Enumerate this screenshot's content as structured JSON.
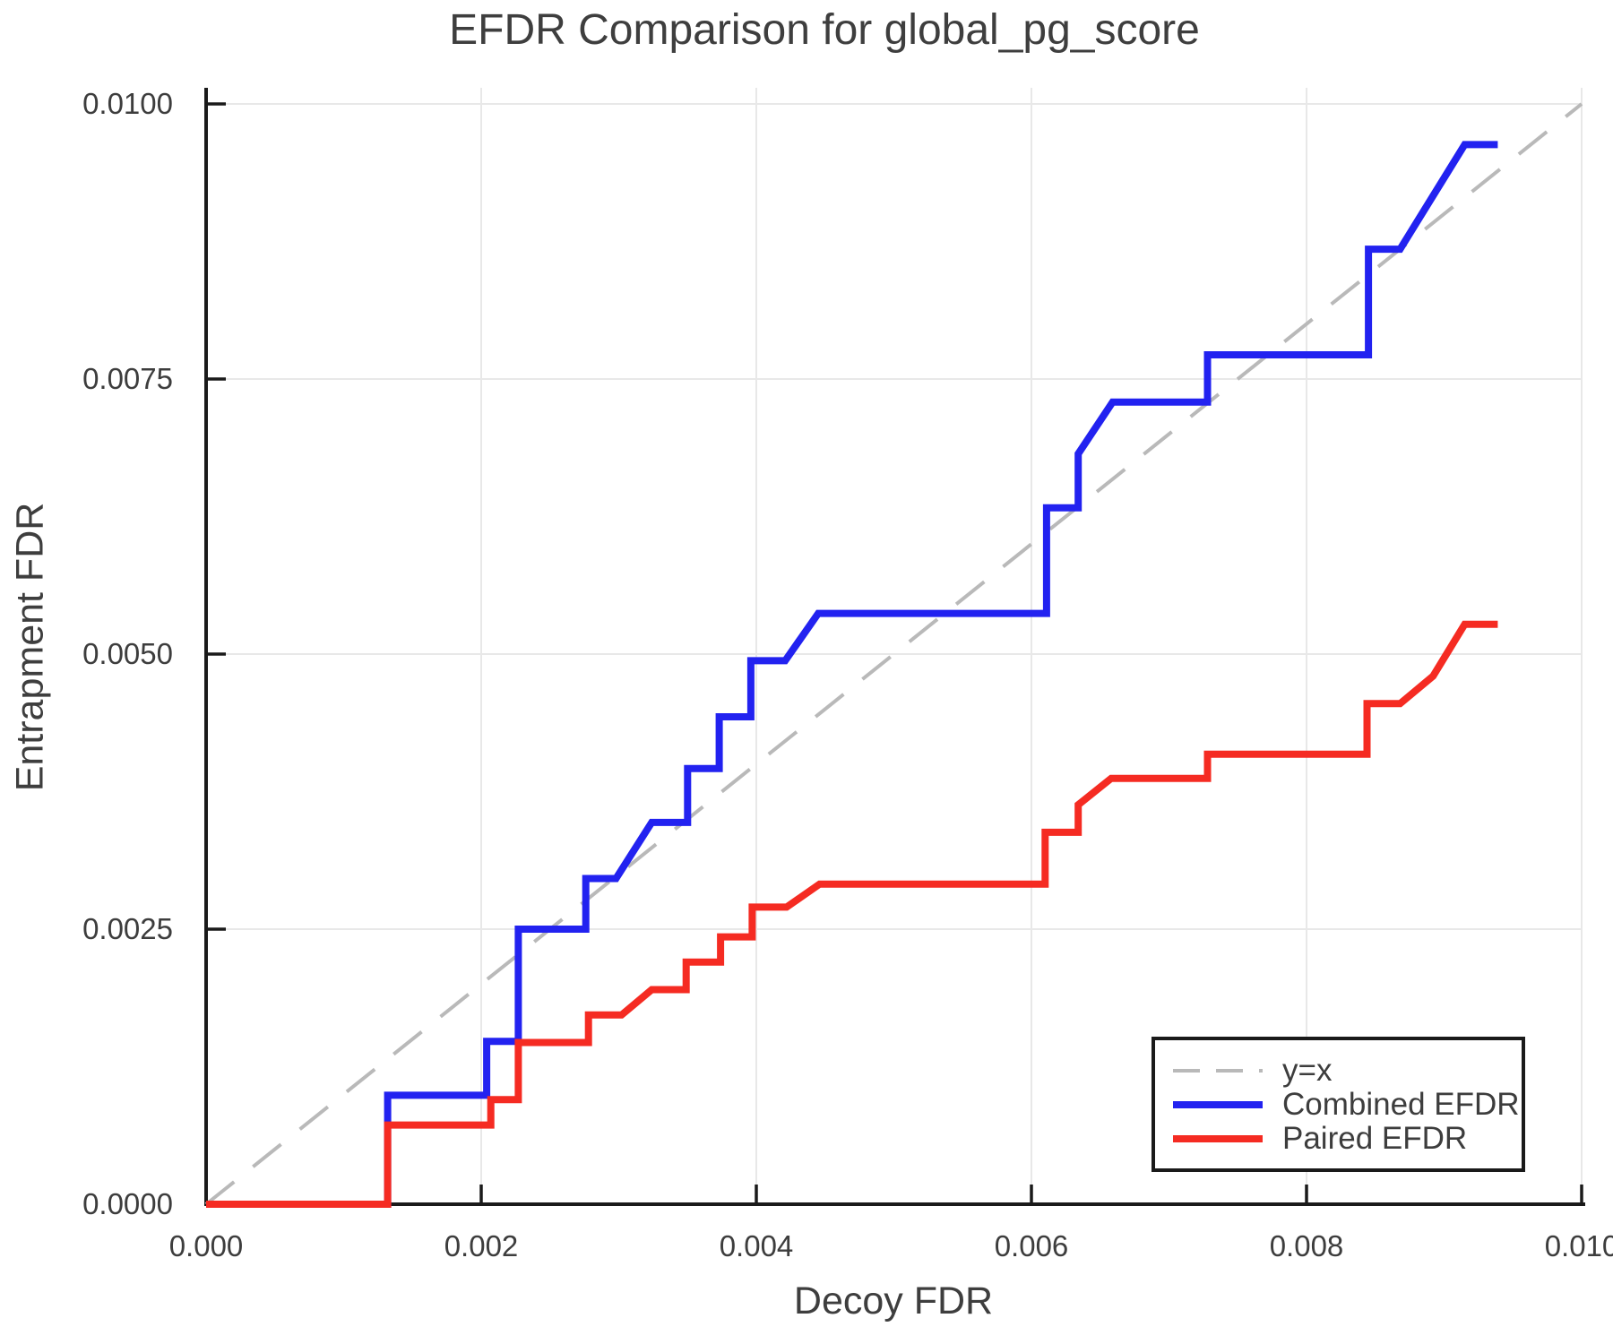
{
  "chart_data": {
    "type": "line",
    "title": "EFDR Comparison for global_pg_score",
    "xlabel": "Decoy FDR",
    "ylabel": "Entrapment FDR",
    "xlim": [
      0,
      0.01
    ],
    "ylim": [
      0,
      0.01
    ],
    "grid": true,
    "legend_position": "lower right",
    "x_ticks": [
      {
        "v": 0.0,
        "label": "0.000"
      },
      {
        "v": 0.002,
        "label": "0.002"
      },
      {
        "v": 0.004,
        "label": "0.004"
      },
      {
        "v": 0.006,
        "label": "0.006"
      },
      {
        "v": 0.008,
        "label": "0.008"
      },
      {
        "v": 0.01,
        "label": "0.010"
      }
    ],
    "y_ticks": [
      {
        "v": 0.0,
        "label": "0.0000"
      },
      {
        "v": 0.0025,
        "label": "0.0025"
      },
      {
        "v": 0.005,
        "label": "0.0050"
      },
      {
        "v": 0.0075,
        "label": "0.0075"
      },
      {
        "v": 0.01,
        "label": "0.0100"
      }
    ],
    "reference_line": {
      "label": "y=x",
      "style": "dashed",
      "color": "#b9b9b9",
      "from": [
        0,
        0
      ],
      "to": [
        0.01,
        0.01
      ]
    },
    "series": [
      {
        "name": "Combined EFDR",
        "color": "#2222f0",
        "points": [
          [
            0.0,
            0.0
          ],
          [
            0.00132,
            0.0
          ],
          [
            0.00132,
            0.00099
          ],
          [
            0.00204,
            0.00099
          ],
          [
            0.00204,
            0.00148
          ],
          [
            0.00227,
            0.00148
          ],
          [
            0.00227,
            0.0025
          ],
          [
            0.00276,
            0.0025
          ],
          [
            0.00276,
            0.00296
          ],
          [
            0.00298,
            0.00296
          ],
          [
            0.00324,
            0.00347
          ],
          [
            0.0035,
            0.00347
          ],
          [
            0.0035,
            0.00396
          ],
          [
            0.00373,
            0.00396
          ],
          [
            0.00373,
            0.00443
          ],
          [
            0.00396,
            0.00443
          ],
          [
            0.00396,
            0.00494
          ],
          [
            0.00421,
            0.00494
          ],
          [
            0.00445,
            0.00537
          ],
          [
            0.00611,
            0.00537
          ],
          [
            0.00611,
            0.00633
          ],
          [
            0.00634,
            0.00633
          ],
          [
            0.00634,
            0.00682
          ],
          [
            0.00659,
            0.00729
          ],
          [
            0.00728,
            0.00729
          ],
          [
            0.00728,
            0.00772
          ],
          [
            0.00845,
            0.00772
          ],
          [
            0.00845,
            0.00868
          ],
          [
            0.00868,
            0.00868
          ],
          [
            0.00915,
            0.00963
          ],
          [
            0.00939,
            0.00963
          ]
        ]
      },
      {
        "name": "Paired EFDR",
        "color": "#f52b22",
        "points": [
          [
            0.0,
            0.0
          ],
          [
            0.00132,
            0.0
          ],
          [
            0.00132,
            0.00072
          ],
          [
            0.00207,
            0.00072
          ],
          [
            0.00207,
            0.00095
          ],
          [
            0.00227,
            0.00095
          ],
          [
            0.00227,
            0.00147
          ],
          [
            0.00278,
            0.00147
          ],
          [
            0.00278,
            0.00172
          ],
          [
            0.00302,
            0.00172
          ],
          [
            0.00324,
            0.00195
          ],
          [
            0.00349,
            0.00195
          ],
          [
            0.00349,
            0.0022
          ],
          [
            0.00374,
            0.0022
          ],
          [
            0.00374,
            0.00243
          ],
          [
            0.00397,
            0.00243
          ],
          [
            0.00397,
            0.0027
          ],
          [
            0.00422,
            0.0027
          ],
          [
            0.00446,
            0.00291
          ],
          [
            0.0061,
            0.00291
          ],
          [
            0.0061,
            0.00338
          ],
          [
            0.00634,
            0.00338
          ],
          [
            0.00634,
            0.00363
          ],
          [
            0.00658,
            0.00387
          ],
          [
            0.00728,
            0.00387
          ],
          [
            0.00728,
            0.00409
          ],
          [
            0.00844,
            0.00409
          ],
          [
            0.00844,
            0.00455
          ],
          [
            0.00868,
            0.00455
          ],
          [
            0.00892,
            0.0048
          ],
          [
            0.00915,
            0.00527
          ],
          [
            0.00939,
            0.00527
          ]
        ]
      }
    ],
    "colors": {
      "grid": "#e8e8e8",
      "axis": "#1a1a1a",
      "text": "#3d3d3d",
      "background": "#ffffff"
    }
  }
}
